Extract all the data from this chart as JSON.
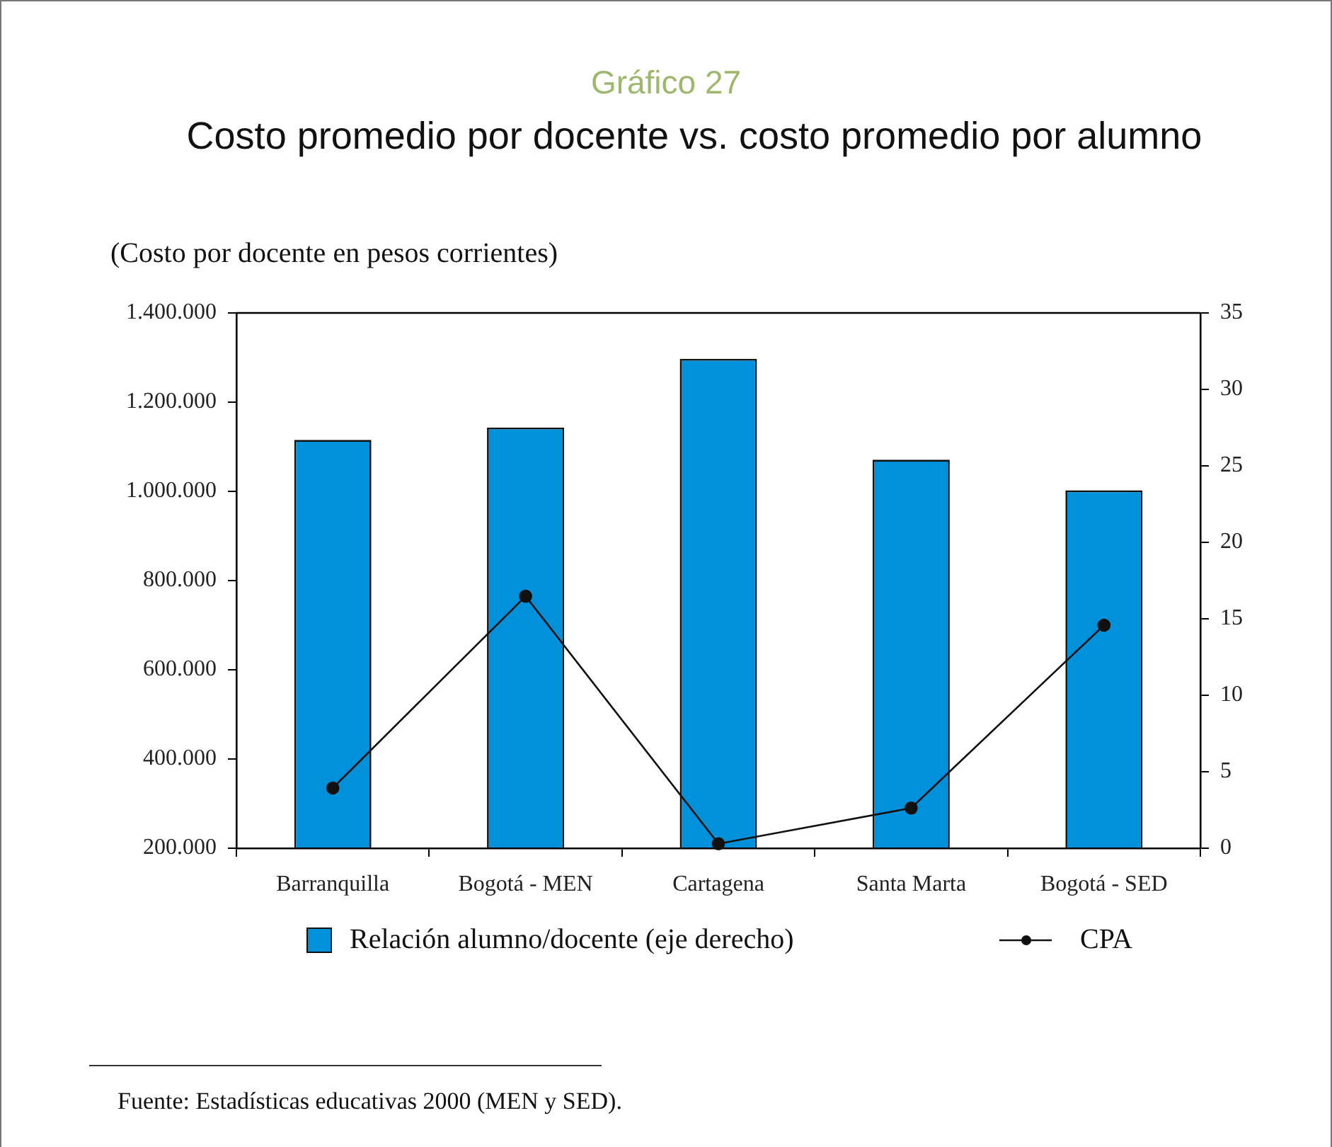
{
  "chart_data": {
    "type": "bar",
    "title": "Gráfico 27",
    "subtitle": "Costo promedio por docente vs. costo promedio por alumno",
    "ylabel": "(Costo por docente en pesos corrientes)",
    "categories": [
      "Barranquilla",
      "Bogotá - MEN",
      "Cartagena",
      "Santa Marta",
      "Bogotá - SED"
    ],
    "series": [
      {
        "name": "Relación alumno/docente (eje derecho)",
        "axis": "y2",
        "color": "#0091da",
        "values": [
          26.7,
          27.5,
          32.0,
          25.4,
          23.4
        ]
      },
      {
        "name": "CPA",
        "type": "line",
        "color": "#111111",
        "values": [
          335000,
          765000,
          210000,
          290000,
          700000
        ]
      }
    ],
    "ylim": [
      200000,
      1400000
    ],
    "yticks": [
      {
        "value": 200000,
        "label": "200.000"
      },
      {
        "value": 400000,
        "label": "400.000"
      },
      {
        "value": 600000,
        "label": "600.000"
      },
      {
        "value": 800000,
        "label": "800.000"
      },
      {
        "value": 1000000,
        "label": "1.000.000"
      },
      {
        "value": 1200000,
        "label": "1.200.000"
      },
      {
        "value": 1400000,
        "label": "1.400.000"
      }
    ],
    "y2lim": [
      0,
      35
    ],
    "y2ticks": [
      0,
      5,
      10,
      15,
      20,
      25,
      30,
      35
    ],
    "marker": "circle",
    "legend": "bottom",
    "annotations": [
      "Fuente: Estadísticas educativas 2000 (MEN y SED)."
    ]
  }
}
